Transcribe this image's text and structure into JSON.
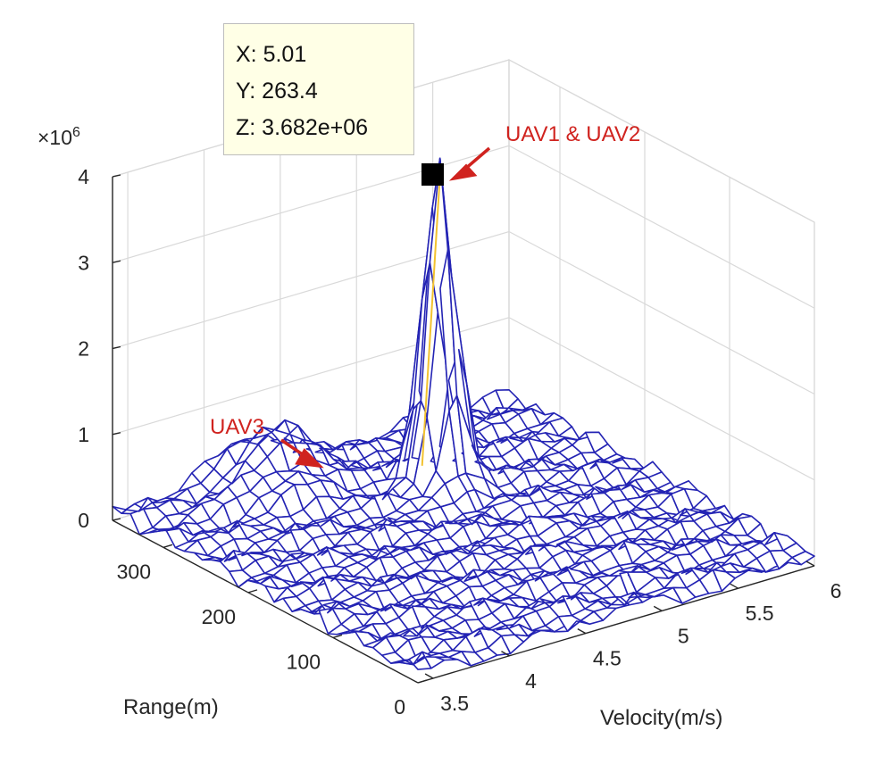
{
  "chart_data": {
    "type": "surface3d",
    "title": "",
    "xlabel": "Velocity(m/s)",
    "ylabel": "Range(m)",
    "zlabel": "",
    "z_exponent_label": "×10",
    "z_exponent_power": "6",
    "xlim": [
      3.4,
      6
    ],
    "ylim": [
      0,
      360
    ],
    "zlim": [
      0,
      4
    ],
    "x_ticks": [
      "3.5",
      "4",
      "4.5",
      "5",
      "5.5",
      "6"
    ],
    "x_tick_values": [
      3.5,
      4,
      4.5,
      5,
      5.5,
      6
    ],
    "y_ticks": [
      "0",
      "100",
      "200",
      "300"
    ],
    "y_tick_values": [
      0,
      100,
      200,
      300
    ],
    "z_ticks": [
      "0",
      "1",
      "2",
      "3",
      "4"
    ],
    "z_tick_values": [
      0,
      1,
      2,
      3,
      4
    ],
    "grid": true,
    "peaks": [
      {
        "name": "UAV1 & UAV2",
        "velocity": 5.01,
        "range": 263.4,
        "magnitude": 3682000
      },
      {
        "name": "UAV3",
        "velocity": 4.3,
        "range": 330,
        "magnitude": 600000
      }
    ],
    "mesh_color": "#2424b4",
    "highlight_color": "#f2c230",
    "annotation_color": "#d0231f"
  },
  "datatip": {
    "x_line": "X: 5.01",
    "y_line": "Y: 263.4",
    "z_line": "Z: 3.682e+06"
  },
  "annotations": {
    "uav12": "UAV1 & UAV2",
    "uav3": "UAV3"
  }
}
